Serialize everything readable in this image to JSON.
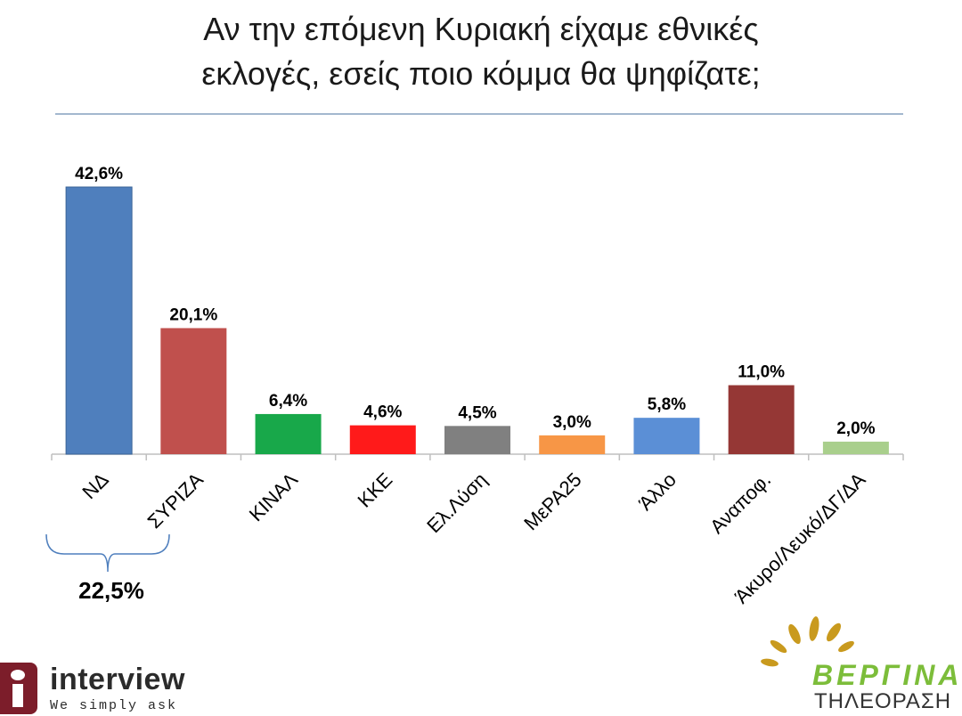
{
  "title_lines": [
    "Αν την επόμενη Κυριακή είχαμε εθνικές",
    "εκλογές, εσείς ποιο κόμμα θα ψηφίζατε;"
  ],
  "chart_data": {
    "type": "bar",
    "title": "Αν την επόμενη Κυριακή είχαμε εθνικές εκλογές, εσείς ποιο κόμμα θα ψηφίζατε;",
    "categories": [
      "ΝΔ",
      "ΣΥΡΙΖΑ",
      "ΚΙΝΑΛ",
      "ΚΚΕ",
      "Ελ.Λύση",
      "ΜεΡΑ25",
      "Άλλο",
      "Αναποφ.",
      "Άκυρο/Λευκό/ΔΓ/ΔΑ"
    ],
    "values": [
      42.6,
      20.1,
      6.4,
      4.6,
      4.5,
      3.0,
      5.8,
      11.0,
      2.0
    ],
    "data_labels": [
      "42,6%",
      "20,1%",
      "6,4%",
      "4,6%",
      "4,5%",
      "3,0%",
      "5,8%",
      "11,0%",
      "2,0%"
    ],
    "colors": [
      "#4f7fbd",
      "#c0504d",
      "#18a84a",
      "#ff1a1a",
      "#808080",
      "#f79646",
      "#5b8fd6",
      "#953735",
      "#a9cf8c"
    ],
    "unit": "%",
    "ylim": [
      0,
      44
    ],
    "grid": false,
    "legend": "none",
    "annotation": {
      "bracket_over": [
        "ΝΔ",
        "ΣΥΡΙΖΑ"
      ],
      "label": "22,5%"
    }
  },
  "logos": {
    "interview_name": "interview",
    "interview_slogan": "We simply ask",
    "interview_color": "#7c1d2a",
    "vergina_name": "ΒΕΡΓΙΝΑ",
    "vergina_sub": "ΤΗΛΕΟΡΑΣΗ",
    "vergina_color": "#7cbd3a"
  }
}
